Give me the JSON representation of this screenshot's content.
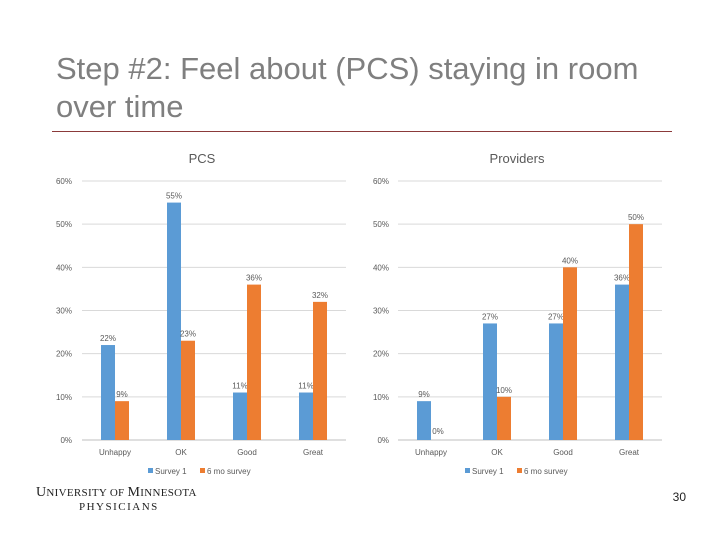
{
  "slide": {
    "title": "Step #2: Feel about (PCS) staying in room over time",
    "page_number": "30",
    "logo": {
      "line1_part1": "U",
      "line1_part2": "NIVERSITY OF ",
      "line1_part3": "M",
      "line1_part4": "INNESOTA",
      "line2": "PHYSICIANS"
    }
  },
  "colors": {
    "survey1": "#5b9bd5",
    "six_mo": "#ed7d31",
    "grid": "#d9d9d9"
  },
  "chart_data": [
    {
      "type": "bar",
      "title": "PCS",
      "categories": [
        "Unhappy",
        "OK",
        "Good",
        "Great"
      ],
      "series": [
        {
          "name": "Survey 1",
          "values": [
            22,
            55,
            11,
            11
          ],
          "labels": [
            "22%",
            "55%",
            "11%",
            "11%"
          ]
        },
        {
          "name": "6 mo survey",
          "values": [
            9,
            23,
            36,
            32
          ],
          "labels": [
            "9%",
            "23%",
            "36%",
            "32%"
          ]
        }
      ],
      "ylim": [
        0,
        60
      ],
      "yticks": [
        "0%",
        "10%",
        "20%",
        "30%",
        "40%",
        "50%",
        "60%"
      ],
      "grid": true,
      "legend": "bottom"
    },
    {
      "type": "bar",
      "title": "Providers",
      "categories": [
        "Unhappy",
        "OK",
        "Good",
        "Great"
      ],
      "series": [
        {
          "name": "Survey 1",
          "values": [
            9,
            27,
            27,
            36
          ],
          "labels": [
            "9%",
            "27%",
            "27%",
            "36%"
          ]
        },
        {
          "name": "6 mo survey",
          "values": [
            0,
            10,
            40,
            50
          ],
          "labels": [
            "0%",
            "10%",
            "40%",
            "50%"
          ]
        }
      ],
      "ylim": [
        0,
        60
      ],
      "yticks": [
        "0%",
        "10%",
        "20%",
        "30%",
        "40%",
        "50%",
        "60%"
      ],
      "grid": true,
      "legend": "bottom"
    }
  ]
}
